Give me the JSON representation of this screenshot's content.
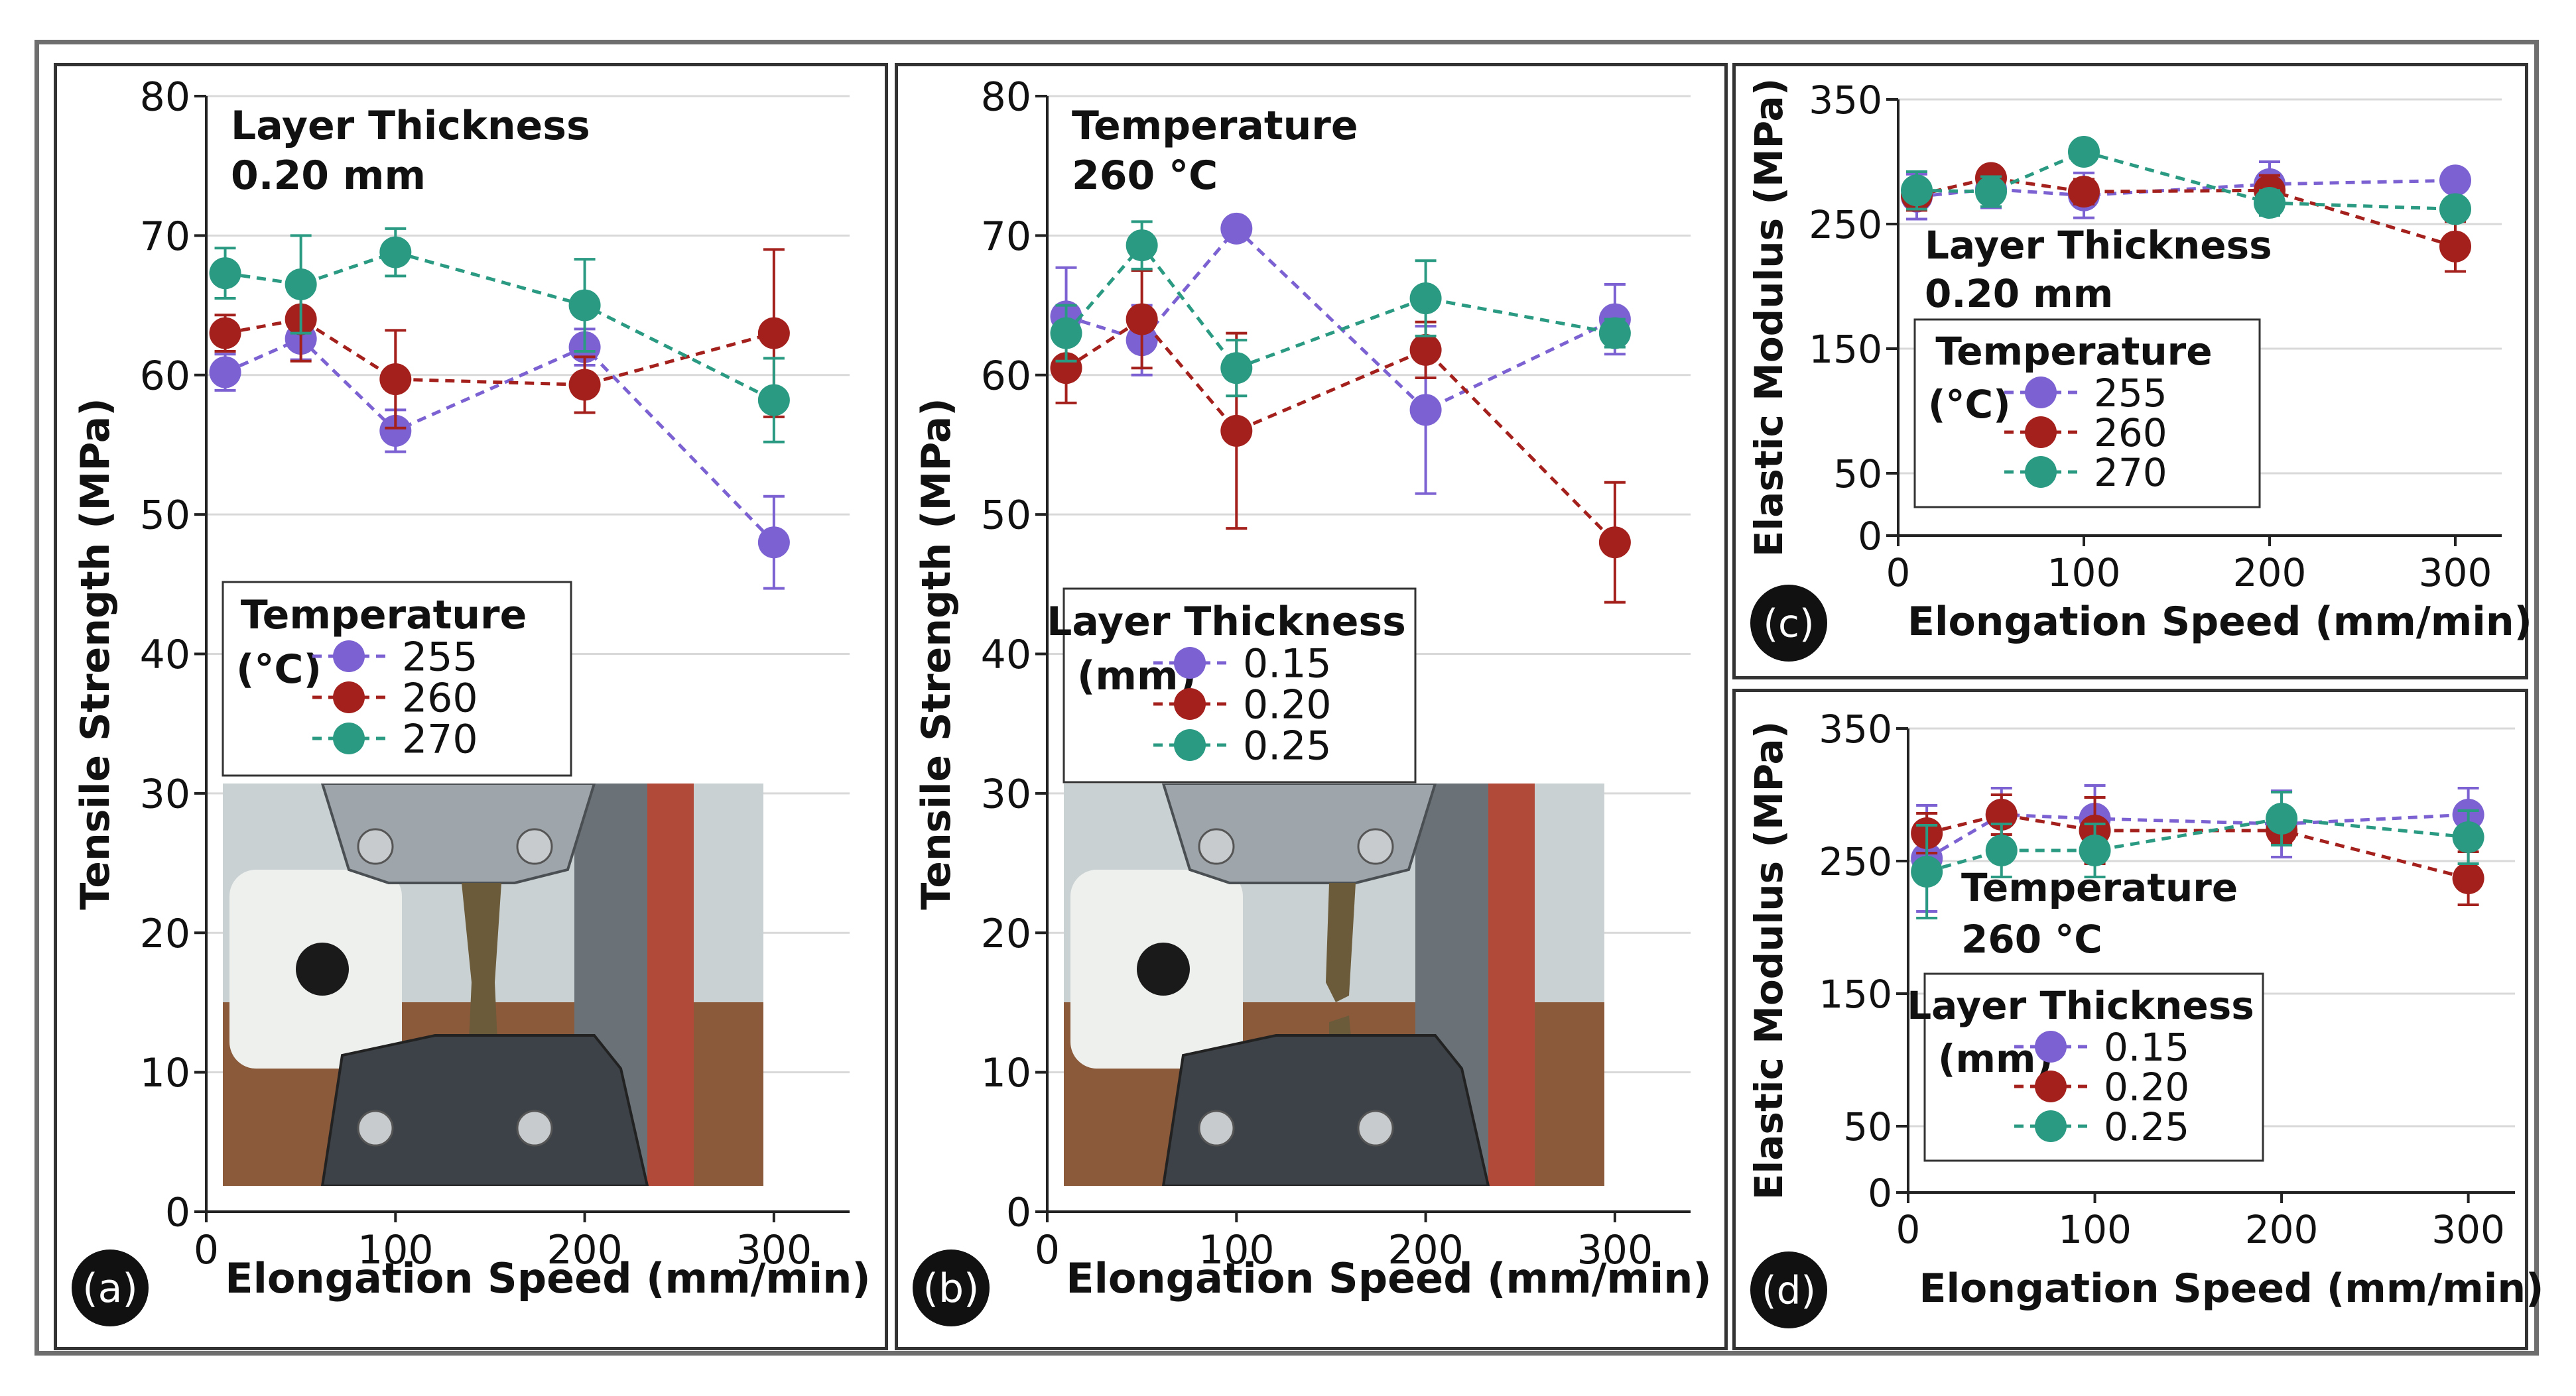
{
  "colors": {
    "purple": "#7b61d1",
    "red": "#a4201c",
    "teal": "#2a9a82",
    "grid": "#d9d9d9",
    "axis": "#222222"
  },
  "x_axis_label": "Elongation Speed (mm/min)",
  "chart_data": [
    {
      "id": "a",
      "type": "line",
      "panel_label": "(a)",
      "ylabel": "Tensile Strength (MPa)",
      "xlabel": "Elongation Speed (mm/min)",
      "annotation": [
        "Layer Thickness",
        "0.20 mm"
      ],
      "xlim": [
        0,
        340
      ],
      "ylim": [
        0,
        80
      ],
      "xticks": [
        0,
        100,
        200,
        300
      ],
      "yticks": [
        0,
        10,
        20,
        30,
        40,
        50,
        60,
        70,
        80
      ],
      "grid": true,
      "legend": {
        "title": [
          "Temperature",
          "(°C)"
        ],
        "placement": "middle-left"
      },
      "series": [
        {
          "name": "255",
          "color": "purple",
          "x": [
            10,
            50,
            100,
            200,
            300
          ],
          "y": [
            60.2,
            62.6,
            56.0,
            62.0,
            48.0
          ],
          "err": [
            1.3,
            1.5,
            1.5,
            1.3,
            3.3
          ]
        },
        {
          "name": "260",
          "color": "red",
          "x": [
            10,
            50,
            100,
            200,
            300
          ],
          "y": [
            63.0,
            64.0,
            59.7,
            59.3,
            63.0
          ],
          "err": [
            1.3,
            3.0,
            3.5,
            2.0,
            6.0
          ]
        },
        {
          "name": "270",
          "color": "teal",
          "x": [
            10,
            50,
            100,
            200,
            300
          ],
          "y": [
            67.3,
            66.5,
            68.8,
            65.0,
            58.2
          ],
          "err": [
            1.8,
            3.5,
            1.7,
            3.3,
            3.0
          ]
        }
      ]
    },
    {
      "id": "b",
      "type": "line",
      "panel_label": "(b)",
      "ylabel": "Tensile Strength (MPa)",
      "xlabel": "Elongation Speed (mm/min)",
      "annotation": [
        "Temperature",
        "260 °C"
      ],
      "xlim": [
        0,
        340
      ],
      "ylim": [
        0,
        80
      ],
      "xticks": [
        0,
        100,
        200,
        300
      ],
      "yticks": [
        0,
        10,
        20,
        30,
        40,
        50,
        60,
        70,
        80
      ],
      "grid": true,
      "legend": {
        "title": [
          "Layer Thickness",
          "(mm)"
        ],
        "placement": "middle-left"
      },
      "series": [
        {
          "name": "0.15",
          "color": "purple",
          "x": [
            10,
            50,
            100,
            200,
            300
          ],
          "y": [
            64.2,
            62.5,
            70.5,
            57.5,
            64.0
          ],
          "err": [
            3.5,
            2.5,
            0.5,
            6.0,
            2.5
          ]
        },
        {
          "name": "0.20",
          "color": "red",
          "x": [
            10,
            50,
            100,
            200,
            300
          ],
          "y": [
            60.5,
            64.0,
            56.0,
            61.8,
            48.0
          ],
          "err": [
            2.5,
            3.5,
            7.0,
            2.0,
            4.3
          ]
        },
        {
          "name": "0.25",
          "color": "teal",
          "x": [
            10,
            50,
            100,
            200,
            300
          ],
          "y": [
            63.0,
            69.3,
            60.5,
            65.5,
            63.0
          ],
          "err": [
            2.0,
            1.7,
            2.0,
            2.7,
            1.0
          ]
        }
      ]
    },
    {
      "id": "c",
      "type": "line",
      "panel_label": "(c)",
      "ylabel": "Elastic Modulus (MPa)",
      "xlabel": "Elongation Speed (mm/min)",
      "annotation": [
        "Layer Thickness",
        "0.20 mm"
      ],
      "xlim": [
        0,
        325
      ],
      "ylim": [
        0,
        350
      ],
      "xticks": [
        0,
        100,
        200,
        300
      ],
      "yticks": [
        0,
        50,
        150,
        250,
        350
      ],
      "grid": true,
      "legend": {
        "title": [
          "Temperature",
          "(°C)"
        ],
        "placement": "middle-left"
      },
      "series": [
        {
          "name": "255",
          "color": "purple",
          "x": [
            10,
            50,
            100,
            200,
            300
          ],
          "y": [
            272,
            278,
            273,
            282,
            285
          ],
          "err": [
            18,
            15,
            18,
            18,
            5
          ]
        },
        {
          "name": "260",
          "color": "red",
          "x": [
            10,
            50,
            100,
            200,
            300
          ],
          "y": [
            273,
            287,
            276,
            277,
            232
          ],
          "err": [
            12,
            8,
            10,
            12,
            20
          ]
        },
        {
          "name": "270",
          "color": "teal",
          "x": [
            10,
            50,
            100,
            200,
            300
          ],
          "y": [
            277,
            276,
            308,
            267,
            262
          ],
          "err": [
            15,
            12,
            5,
            10,
            5
          ]
        }
      ]
    },
    {
      "id": "d",
      "type": "line",
      "panel_label": "(d)",
      "ylabel": "Elastic Modulus (MPa)",
      "xlabel": "Elongation Speed (mm/min)",
      "annotation": [
        "Temperature",
        "260 °C"
      ],
      "xlim": [
        0,
        325
      ],
      "ylim": [
        0,
        350
      ],
      "xticks": [
        0,
        100,
        200,
        300
      ],
      "yticks": [
        0,
        50,
        150,
        250,
        350
      ],
      "grid": true,
      "legend": {
        "title": [
          "Layer Thickness",
          "(mm)"
        ],
        "placement": "middle-left"
      },
      "series": [
        {
          "name": "0.15",
          "color": "purple",
          "x": [
            10,
            50,
            100,
            200,
            300
          ],
          "y": [
            252,
            285,
            282,
            278,
            285
          ],
          "err": [
            40,
            20,
            25,
            25,
            20
          ]
        },
        {
          "name": "0.20",
          "color": "red",
          "x": [
            10,
            50,
            100,
            200,
            300
          ],
          "y": [
            271,
            285,
            273,
            273,
            237
          ],
          "err": [
            15,
            15,
            25,
            10,
            20
          ]
        },
        {
          "name": "0.25",
          "color": "teal",
          "x": [
            10,
            50,
            100,
            200,
            300
          ],
          "y": [
            242,
            258,
            258,
            282,
            268
          ],
          "err": [
            35,
            20,
            20,
            20,
            20
          ]
        }
      ]
    }
  ]
}
